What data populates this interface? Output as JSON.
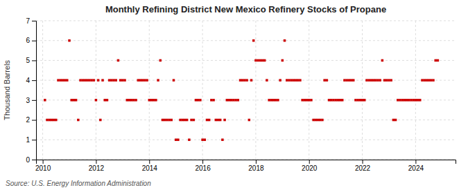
{
  "chart_data": {
    "type": "scatter",
    "title": "Monthly Refining District New Mexico Refinery Stocks of Propane",
    "ylabel": "Thousand Barrels",
    "annotations": [
      "Source: U.S. Energy Information Administration"
    ],
    "color": "#cc0000",
    "marker": "square",
    "grid": true,
    "xlim": [
      2009.75,
      2025.5
    ],
    "xticks": [
      2010,
      2012,
      2014,
      2016,
      2018,
      2020,
      2022,
      2024
    ],
    "ylim": [
      0,
      7
    ],
    "yticks": [
      0,
      1,
      2,
      3,
      4,
      5,
      6,
      7
    ],
    "x": [
      2010.0833,
      2010.1667,
      2010.25,
      2010.3333,
      2010.4167,
      2010.5,
      2010.5833,
      2010.6667,
      2010.75,
      2010.8333,
      2010.9167,
      2011.0,
      2011.0833,
      2011.1667,
      2011.25,
      2011.3333,
      2011.4167,
      2011.5,
      2011.5833,
      2011.6667,
      2011.75,
      2011.8333,
      2011.9167,
      2012.0,
      2012.0833,
      2012.1667,
      2012.25,
      2012.3333,
      2012.4167,
      2012.5,
      2012.5833,
      2012.6667,
      2012.75,
      2012.8333,
      2012.9167,
      2013.0,
      2013.0833,
      2013.1667,
      2013.25,
      2013.3333,
      2013.4167,
      2013.5,
      2013.5833,
      2013.6667,
      2013.75,
      2013.8333,
      2013.9167,
      2014.0,
      2014.0833,
      2014.1667,
      2014.25,
      2014.3333,
      2014.4167,
      2014.5,
      2014.5833,
      2014.6667,
      2014.75,
      2014.8333,
      2014.9167,
      2015.0,
      2015.0833,
      2015.1667,
      2015.25,
      2015.3333,
      2015.4167,
      2015.5,
      2015.5833,
      2015.6667,
      2015.75,
      2015.8333,
      2015.9167,
      2016.0,
      2016.0833,
      2016.1667,
      2016.25,
      2016.3333,
      2016.4167,
      2016.5,
      2016.5833,
      2016.6667,
      2016.75,
      2016.8333,
      2016.9167,
      2017.0,
      2017.0833,
      2017.1667,
      2017.25,
      2017.3333,
      2017.4167,
      2017.5,
      2017.5833,
      2017.6667,
      2017.75,
      2017.8333,
      2017.9167,
      2018.0,
      2018.0833,
      2018.1667,
      2018.25,
      2018.3333,
      2018.4167,
      2018.5,
      2018.5833,
      2018.6667,
      2018.75,
      2018.8333,
      2018.9167,
      2019.0,
      2019.0833,
      2019.1667,
      2019.25,
      2019.3333,
      2019.4167,
      2019.5,
      2019.5833,
      2019.6667,
      2019.75,
      2019.8333,
      2019.9167,
      2020.0,
      2020.0833,
      2020.1667,
      2020.25,
      2020.3333,
      2020.4167,
      2020.5,
      2020.5833,
      2020.6667,
      2020.75,
      2020.8333,
      2020.9167,
      2021.0,
      2021.0833,
      2021.1667,
      2021.25,
      2021.3333,
      2021.4167,
      2021.5,
      2021.5833,
      2021.6667,
      2021.75,
      2021.8333,
      2021.9167,
      2022.0,
      2022.0833,
      2022.1667,
      2022.25,
      2022.3333,
      2022.4167,
      2022.5,
      2022.5833,
      2022.6667,
      2022.75,
      2022.8333,
      2022.9167,
      2023.0,
      2023.0833,
      2023.1667,
      2023.25,
      2023.3333,
      2023.4167,
      2023.5,
      2023.5833,
      2023.6667,
      2023.75,
      2023.8333,
      2023.9167,
      2024.0,
      2024.0833,
      2024.1667,
      2024.25,
      2024.3333,
      2024.4167,
      2024.5,
      2024.5833,
      2024.6667,
      2024.75,
      2024.8333
    ],
    "values": [
      3,
      2,
      2,
      2,
      2,
      2,
      4,
      4,
      4,
      4,
      4,
      6,
      3,
      3,
      3,
      2,
      4,
      4,
      4,
      4,
      4,
      4,
      4,
      3,
      4,
      2,
      4,
      3,
      3,
      4,
      4,
      4,
      4,
      5,
      4,
      4,
      4,
      3,
      3,
      3,
      3,
      3,
      4,
      4,
      4,
      4,
      4,
      3,
      3,
      3,
      3,
      4,
      5,
      2,
      2,
      2,
      2,
      2,
      4,
      1,
      1,
      2,
      2,
      2,
      2,
      1,
      2,
      2,
      3,
      3,
      3,
      1,
      1,
      2,
      2,
      3,
      3,
      2,
      2,
      2,
      1,
      2,
      3,
      3,
      3,
      3,
      3,
      3,
      4,
      4,
      4,
      4,
      2,
      4,
      6,
      5,
      5,
      5,
      5,
      5,
      4,
      3,
      3,
      3,
      3,
      3,
      4,
      5,
      6,
      4,
      4,
      4,
      4,
      4,
      4,
      4,
      3,
      3,
      3,
      3,
      3,
      2,
      2,
      2,
      2,
      2,
      4,
      4,
      3,
      3,
      3,
      3,
      3,
      3,
      3,
      4,
      4,
      4,
      4,
      4,
      3,
      3,
      3,
      3,
      3,
      4,
      4,
      4,
      4,
      4,
      4,
      4,
      5,
      4,
      4,
      4,
      4,
      2,
      2,
      3,
      3,
      3,
      3,
      3,
      3,
      3,
      3,
      3,
      3,
      3,
      4,
      4,
      4,
      4,
      4,
      4,
      5,
      5
    ]
  }
}
